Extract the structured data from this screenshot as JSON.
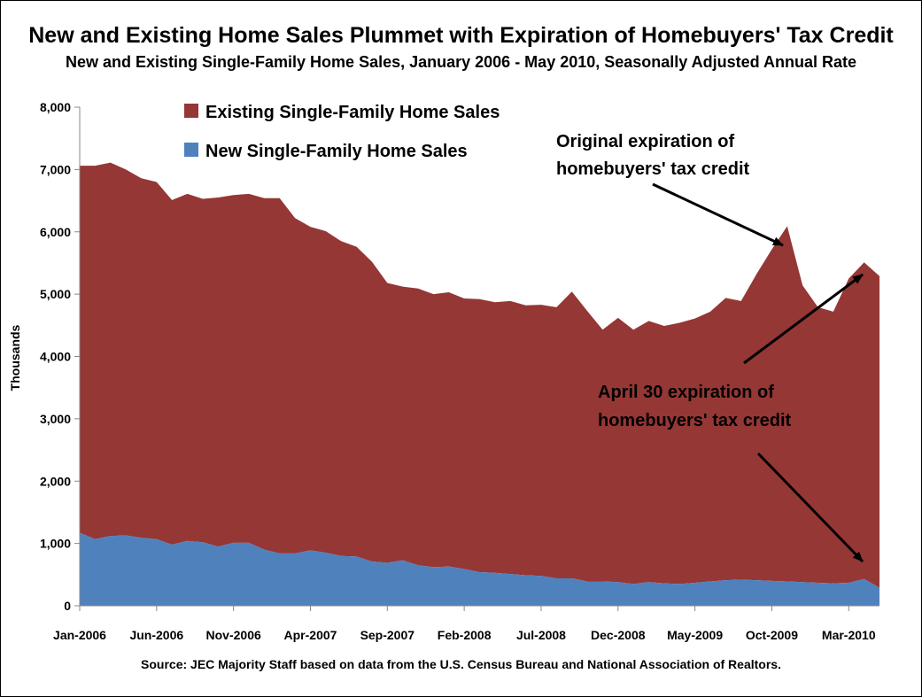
{
  "chart_data": {
    "type": "area",
    "title": "New and Existing Home Sales Plummet with Expiration of Homebuyers' Tax Credit",
    "subtitle": "New and Existing Single-Family Home Sales, January 2006 - May 2010, Seasonally Adjusted Annual Rate",
    "ylabel": "Thousands",
    "xlabel": "",
    "ylim": [
      0,
      8000
    ],
    "yticks": [
      "0",
      "1,000",
      "2,000",
      "3,000",
      "4,000",
      "5,000",
      "6,000",
      "7,000",
      "8,000"
    ],
    "xtick_labels": [
      "Jan-2006",
      "Jun-2006",
      "Nov-2006",
      "Apr-2007",
      "Sep-2007",
      "Feb-2008",
      "Jul-2008",
      "Dec-2008",
      "May-2009",
      "Oct-2009",
      "Mar-2010"
    ],
    "xtick_every": 5,
    "x_start": "Jan-2006",
    "x_end": "May-2010",
    "stacked": true,
    "grid": false,
    "legend_position": "top-left",
    "series": [
      {
        "name": "New Single-Family Home Sales",
        "color": "#4f81bd",
        "values": [
          1170,
          1070,
          1120,
          1130,
          1090,
          1070,
          980,
          1040,
          1020,
          950,
          1010,
          1010,
          900,
          840,
          840,
          890,
          850,
          800,
          790,
          710,
          690,
          730,
          650,
          620,
          630,
          590,
          540,
          530,
          510,
          490,
          480,
          440,
          440,
          390,
          390,
          380,
          350,
          380,
          360,
          350,
          370,
          390,
          410,
          420,
          410,
          400,
          390,
          380,
          370,
          360,
          370,
          430,
          290
        ]
      },
      {
        "name": "Existing Single-Family Home Sales",
        "color": "#953735",
        "values": [
          5890,
          5990,
          5990,
          5870,
          5770,
          5730,
          5530,
          5570,
          5510,
          5600,
          5580,
          5600,
          5640,
          5700,
          5380,
          5190,
          5160,
          5050,
          4970,
          4810,
          4490,
          4390,
          4440,
          4380,
          4400,
          4340,
          4380,
          4340,
          4380,
          4330,
          4350,
          4350,
          4600,
          4340,
          4040,
          4240,
          4080,
          4190,
          4130,
          4190,
          4240,
          4330,
          4530,
          4470,
          4910,
          5320,
          5700,
          4760,
          4420,
          4360,
          4880,
          5080,
          5000
        ]
      }
    ],
    "annotations": [
      {
        "lines": [
          "Original expiration of",
          "homebuyers' tax credit"
        ]
      },
      {
        "lines": [
          "April 30 expiration of",
          "homebuyers' tax credit"
        ]
      }
    ],
    "source": "Source: JEC Majority Staff based on data from the U.S. Census Bureau and National Association of Realtors."
  }
}
